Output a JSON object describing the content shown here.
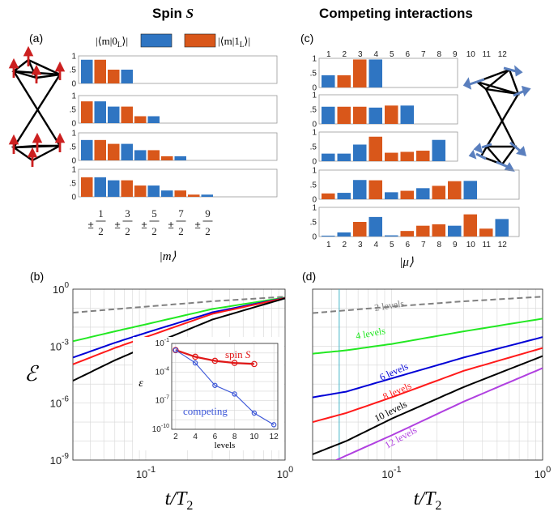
{
  "headers": {
    "left_title": "Spin",
    "left_title_symbol": "S",
    "right_title": "Competing interactions"
  },
  "panel_labels": {
    "a": "(a)",
    "b": "(b)",
    "c": "(c)",
    "d": "(d)"
  },
  "colors": {
    "blue": "#2f75c2",
    "orange": "#d9571a",
    "gray": "#808080",
    "green": "#22e822",
    "darkblue": "#0000d6",
    "red": "#ff1a1a",
    "black": "#000000",
    "purple": "#b040e0",
    "cyan": "#46b4c8",
    "inset_red": "#e01818",
    "inset_blue": "#3a55d8"
  },
  "chart_data": [
    {
      "id": "a",
      "type": "bar",
      "legend": [
        "⟨m|0_L⟩",
        "⟨m|1_L⟩"
      ],
      "legend_text": {
        "blue": "|⟨m|0",
        "blue_sub": "L",
        "orange": "|⟨m|1",
        "orange_sub": "L"
      },
      "xlabel": "|m⟩",
      "x_tick_numerators": [
        "1",
        "3",
        "5",
        "7",
        "9"
      ],
      "x_tick_denominator": "2",
      "x_tick_prefix": "±",
      "yticks": [
        "1",
        ".5",
        "0"
      ],
      "ylim": [
        0,
        1
      ],
      "subplots": [
        {
          "values": [
            0.86,
            0.86,
            0.5,
            0.5
          ],
          "colors": [
            "blue",
            "orange",
            "orange",
            "blue"
          ]
        },
        {
          "values": [
            0.79,
            0.79,
            0.6,
            0.6,
            0.25,
            0.25
          ],
          "colors": [
            "orange",
            "blue",
            "blue",
            "orange",
            "orange",
            "blue"
          ]
        },
        {
          "values": [
            0.74,
            0.74,
            0.6,
            0.6,
            0.37,
            0.37,
            0.15,
            0.15
          ],
          "colors": [
            "blue",
            "orange",
            "orange",
            "blue",
            "blue",
            "orange",
            "orange",
            "blue"
          ]
        },
        {
          "values": [
            0.71,
            0.71,
            0.6,
            0.6,
            0.41,
            0.41,
            0.23,
            0.23,
            0.08,
            0.08
          ],
          "colors": [
            "orange",
            "blue",
            "blue",
            "orange",
            "orange",
            "blue",
            "blue",
            "orange",
            "orange",
            "blue"
          ]
        }
      ]
    },
    {
      "id": "c",
      "type": "bar",
      "xlabel": "|μ⟩",
      "top_ticks": [
        "1",
        "2",
        "3",
        "4",
        "5",
        "6",
        "7",
        "8",
        "9",
        "10",
        "11",
        "12"
      ],
      "bottom_ticks": [
        "1",
        "2",
        "3",
        "4",
        "5",
        "6",
        "7",
        "8",
        "9",
        "10",
        "11",
        "12"
      ],
      "yticks": [
        "1",
        ".5",
        "0"
      ],
      "ylim": [
        0,
        1
      ],
      "subplots": [
        {
          "values": [
            0.42,
            0.42,
            0.96,
            0.96
          ],
          "colors": [
            "blue",
            "orange",
            "orange",
            "blue"
          ]
        },
        {
          "values": [
            0.59,
            0.59,
            0.59,
            0.56,
            0.63,
            0.63
          ],
          "colors": [
            "blue",
            "orange",
            "orange",
            "blue",
            "orange",
            "blue"
          ]
        },
        {
          "values": [
            0.26,
            0.26,
            0.57,
            0.84,
            0.29,
            0.32,
            0.36,
            0.73
          ],
          "colors": [
            "blue",
            "blue",
            "blue",
            "orange",
            "orange",
            "orange",
            "orange",
            "blue"
          ]
        },
        {
          "values": [
            0.2,
            0.22,
            0.66,
            0.65,
            0.24,
            0.29,
            0.38,
            0.46,
            0.62,
            0.63
          ],
          "colors": [
            "orange",
            "blue",
            "blue",
            "orange",
            "blue",
            "orange",
            "blue",
            "orange",
            "orange",
            "blue"
          ]
        },
        {
          "values": [
            0.03,
            0.14,
            0.5,
            0.67,
            0.04,
            0.19,
            0.37,
            0.42,
            0.37,
            0.76,
            0.27,
            0.6
          ],
          "colors": [
            "blue",
            "blue",
            "orange",
            "blue",
            "blue",
            "orange",
            "orange",
            "orange",
            "blue",
            "orange",
            "orange",
            "blue"
          ]
        }
      ]
    },
    {
      "id": "b",
      "type": "line",
      "xscale": "log",
      "yscale": "log",
      "xlim": [
        0.03,
        1
      ],
      "ylim": [
        1e-09,
        1
      ],
      "xlabel": "t/T_2",
      "xlabel_main": "t/T",
      "xlabel_sub": "2",
      "ylabel": "ℰ",
      "xticks": [
        {
          "v": 0.1,
          "base": "10",
          "exp": "-1"
        },
        {
          "v": 1,
          "base": "10",
          "exp": "0"
        }
      ],
      "yticks": [
        {
          "v": 1,
          "base": "10",
          "exp": "0"
        },
        {
          "v": 0.001,
          "base": "10",
          "exp": "-3"
        },
        {
          "v": 1e-06,
          "base": "10",
          "exp": "-6"
        },
        {
          "v": 1e-09,
          "base": "10",
          "exp": "-9"
        }
      ],
      "grid": true,
      "series": [
        {
          "color": "gray",
          "dash": true,
          "points": [
            [
              0.03,
              0.058
            ],
            [
              0.1,
              0.12
            ],
            [
              0.3,
              0.23
            ],
            [
              1,
              0.4
            ]
          ]
        },
        {
          "color": "green",
          "points": [
            [
              0.03,
              0.0018
            ],
            [
              0.06,
              0.006
            ],
            [
              0.1,
              0.014
            ],
            [
              0.3,
              0.09
            ],
            [
              1,
              0.36
            ]
          ]
        },
        {
          "color": "darkblue",
          "points": [
            [
              0.03,
              0.00025
            ],
            [
              0.06,
              0.0015
            ],
            [
              0.1,
              0.005
            ],
            [
              0.3,
              0.06
            ],
            [
              1,
              0.35
            ]
          ]
        },
        {
          "color": "red",
          "points": [
            [
              0.03,
              0.00011
            ],
            [
              0.06,
              0.0008
            ],
            [
              0.1,
              0.003
            ],
            [
              0.3,
              0.05
            ],
            [
              1,
              0.34
            ]
          ]
        },
        {
          "color": "black",
          "points": [
            [
              0.03,
              1.5e-05
            ],
            [
              0.06,
              0.00018
            ],
            [
              0.1,
              0.0009
            ],
            [
              0.3,
              0.025
            ],
            [
              1,
              0.33
            ]
          ]
        }
      ],
      "inset": {
        "type": "line",
        "xlabel": "levels",
        "ylabel": "ε",
        "xticks": [
          "2",
          "4",
          "6",
          "8",
          "10",
          "12"
        ],
        "yticks": [
          {
            "v": 0.1,
            "base": "10",
            "exp": "-1"
          },
          {
            "v": 0.0001,
            "base": "10",
            "exp": "-4"
          },
          {
            "v": 1e-07,
            "base": "10",
            "exp": "-7"
          },
          {
            "v": 1e-10,
            "base": "10",
            "exp": "-10"
          }
        ],
        "xlim": [
          1.6,
          12.4
        ],
        "ylim": [
          1e-10,
          0.1
        ],
        "series": [
          {
            "name": "spin S",
            "name_text": "spin",
            "name_symbol": "S",
            "color": "inset_red",
            "x": [
              2,
              4,
              6,
              8,
              10
            ],
            "y": [
              0.02,
              0.004,
              0.0015,
              0.0009,
              0.0007
            ]
          },
          {
            "name": "competing",
            "color": "inset_blue",
            "x": [
              2,
              4,
              6,
              8,
              10,
              12
            ],
            "y": [
              0.02,
              0.0009,
              4e-06,
              5e-07,
              5e-09,
              3e-10
            ]
          }
        ]
      }
    },
    {
      "id": "d",
      "type": "line",
      "xscale": "log",
      "yscale": "log",
      "xlim": [
        0.03,
        1
      ],
      "ylim": [
        1e-09,
        1
      ],
      "xlabel": "t/T_2",
      "xlabel_main": "t/T",
      "xlabel_sub": "2",
      "xticks": [
        {
          "v": 0.1,
          "base": "10",
          "exp": "-1"
        },
        {
          "v": 1,
          "base": "10",
          "exp": "0"
        }
      ],
      "grid": true,
      "vline_x": 0.045,
      "series": [
        {
          "name": "2 levels",
          "color": "gray",
          "dash": true,
          "points": [
            [
              0.03,
              0.055
            ],
            [
              0.1,
              0.12
            ],
            [
              0.3,
              0.23
            ],
            [
              1,
              0.4
            ]
          ]
        },
        {
          "name": "4 levels",
          "color": "green",
          "points": [
            [
              0.03,
              0.0004
            ],
            [
              0.05,
              0.0006
            ],
            [
              0.1,
              0.0013
            ],
            [
              0.3,
              0.006
            ],
            [
              1,
              0.028
            ]
          ]
        },
        {
          "name": "6 levels",
          "color": "darkblue",
          "points": [
            [
              0.03,
              2e-06
            ],
            [
              0.05,
              4e-06
            ],
            [
              0.1,
              2e-05
            ],
            [
              0.3,
              0.00025
            ],
            [
              1,
              0.003
            ]
          ]
        },
        {
          "name": "8 levels",
          "color": "red",
          "points": [
            [
              0.03,
              1e-07
            ],
            [
              0.05,
              3e-07
            ],
            [
              0.1,
              2e-06
            ],
            [
              0.3,
              5e-05
            ],
            [
              1,
              0.0008
            ]
          ]
        },
        {
          "name": "10 levels",
          "color": "black",
          "points": [
            [
              0.03,
              2e-09
            ],
            [
              0.05,
              1e-08
            ],
            [
              0.1,
              1.5e-07
            ],
            [
              0.3,
              7e-06
            ],
            [
              1,
              0.0003
            ]
          ]
        },
        {
          "name": "12 levels",
          "color": "purple",
          "points": [
            [
              0.043,
              1e-09
            ],
            [
              0.1,
              2e-08
            ],
            [
              0.3,
              1.2e-06
            ],
            [
              1,
              7e-05
            ]
          ]
        }
      ]
    }
  ]
}
